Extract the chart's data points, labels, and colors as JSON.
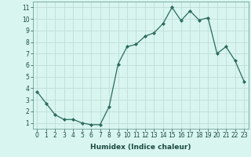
{
  "x": [
    0,
    1,
    2,
    3,
    4,
    5,
    6,
    7,
    8,
    9,
    10,
    11,
    12,
    13,
    14,
    15,
    16,
    17,
    18,
    19,
    20,
    21,
    22,
    23
  ],
  "y": [
    3.7,
    2.7,
    1.7,
    1.3,
    1.3,
    1.0,
    0.85,
    0.85,
    2.4,
    6.1,
    7.6,
    7.8,
    8.5,
    8.8,
    9.6,
    11.0,
    9.85,
    10.7,
    9.9,
    10.1,
    7.0,
    7.6,
    6.4,
    4.6
  ],
  "line_color": "#2a6b5e",
  "marker": "D",
  "marker_size": 2.0,
  "bg_color": "#d8f5f0",
  "grid_color": "#c0ddd8",
  "xlabel": "Humidex (Indice chaleur)",
  "xlim": [
    -0.5,
    23.5
  ],
  "ylim": [
    0.5,
    11.5
  ],
  "yticks": [
    1,
    2,
    3,
    4,
    5,
    6,
    7,
    8,
    9,
    10,
    11
  ],
  "xticks": [
    0,
    1,
    2,
    3,
    4,
    5,
    6,
    7,
    8,
    9,
    10,
    11,
    12,
    13,
    14,
    15,
    16,
    17,
    18,
    19,
    20,
    21,
    22,
    23
  ],
  "label_fontsize": 6.5,
  "tick_fontsize": 5.5
}
